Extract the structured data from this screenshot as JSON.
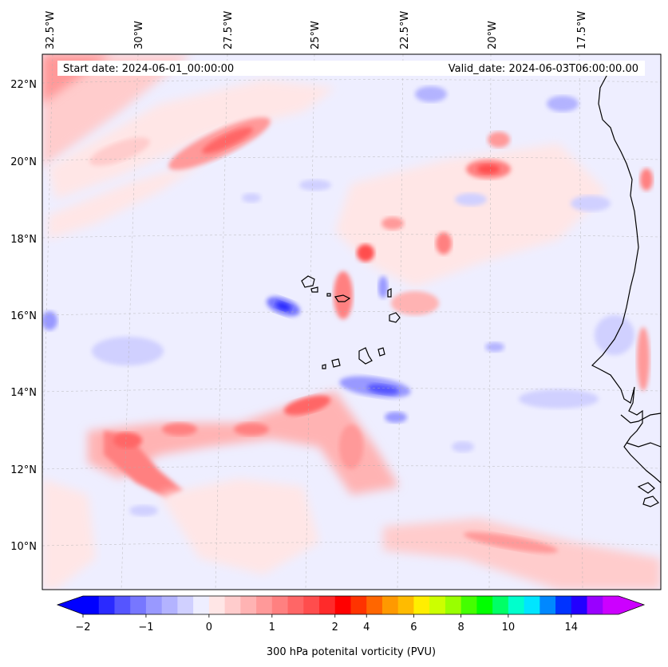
{
  "header": {
    "start_date": "Start date: 2024-06-01_00:00:00",
    "valid_date": "Valid_date: 2024-06-03T06:00:00.00"
  },
  "map": {
    "lon_labels": [
      "32.5°W",
      "30°W",
      "27.5°W",
      "25°W",
      "22.5°W",
      "20°W",
      "17.5°W"
    ],
    "lat_labels": [
      "22°N",
      "20°N",
      "18°N",
      "16°N",
      "14°N",
      "12°N",
      "10°N"
    ],
    "field": "300 hPa potential vorticity",
    "coastline_color": "#000000",
    "gridlines": true
  },
  "colorbar": {
    "label": "300 hPa potenital vorticity (PVU)",
    "tick_labels": [
      "−2",
      "−1",
      "0",
      "1",
      "2",
      "4",
      "6",
      "8",
      "10",
      "14"
    ],
    "colors": [
      "#0000ff",
      "#2a2aff",
      "#5555ff",
      "#7777ff",
      "#9999ff",
      "#b3b3ff",
      "#d0d0ff",
      "#eeeeff",
      "#ffe6e6",
      "#ffcccc",
      "#ffb3b3",
      "#ff9999",
      "#ff8080",
      "#ff6666",
      "#ff4d4d",
      "#ff2a2a",
      "#ff0000",
      "#ff3300",
      "#ff6600",
      "#ff9900",
      "#ffbb00",
      "#ffee00",
      "#ccff00",
      "#99ff00",
      "#44ff00",
      "#00ff00",
      "#00ff66",
      "#00ffcc",
      "#00e5ff",
      "#0088ff",
      "#0033ff",
      "#2200ff",
      "#9900ff",
      "#cc00ff"
    ],
    "extend": "both"
  }
}
